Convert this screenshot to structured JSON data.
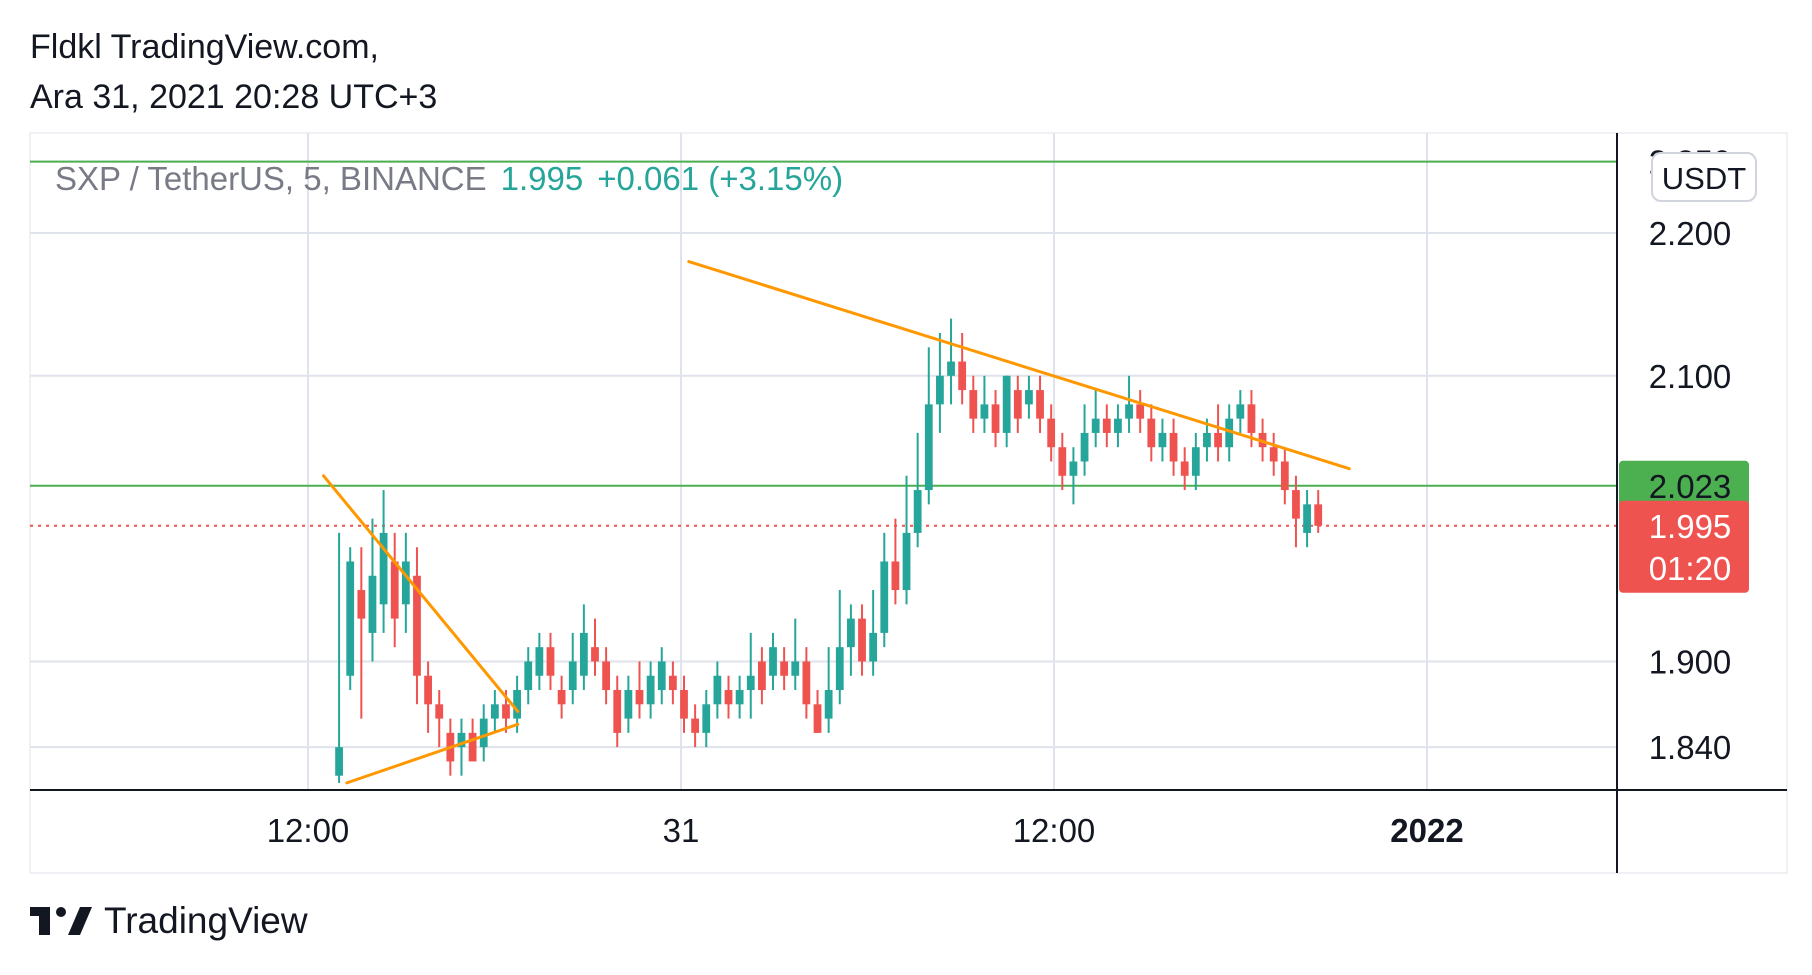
{
  "header": {
    "line1": "Fldkl TradingView.com,",
    "line2": "Ara 31, 2021 20:28 UTC+3"
  },
  "legend": {
    "symbol": "SXP / TetherUS, 5, BINANCE",
    "last": "1.995",
    "change": "+0.061 (+3.15%)"
  },
  "currency": "USDT",
  "footer": {
    "brand": "TradingView",
    "logo": "tradingview-logo-icon"
  },
  "colors": {
    "up": "#26a69a",
    "down": "#ef5350",
    "trendline": "#ff9800",
    "hline": "#4caf50",
    "grid": "#e0e3eb",
    "axis": "#131722",
    "text": "#131722"
  },
  "chart_data": {
    "type": "candlestick",
    "x_tick_labels": [
      "12:00",
      "31",
      "12:00",
      "2022"
    ],
    "y_tick_labels": [
      "2.250",
      "2.200",
      "2.100",
      "1.900",
      "1.840"
    ],
    "y_range": [
      1.81,
      2.27
    ],
    "price_tags": [
      {
        "label": "2.023",
        "value": 2.023,
        "color": "#4caf50"
      },
      {
        "label": "1.995",
        "sub": "01:20",
        "value": 1.995,
        "color": "#ef5350"
      }
    ],
    "horizontal_lines": [
      {
        "value": 2.023,
        "style": "solid",
        "color": "#4caf50"
      },
      {
        "value": 2.25,
        "style": "solid",
        "color": "#4caf50"
      },
      {
        "value": 1.995,
        "style": "dotted",
        "color": "#ef5350"
      }
    ],
    "trendlines": [
      {
        "from": [
          "30 12:30",
          2.03
        ],
        "to": [
          "30 18:45",
          1.865
        ]
      },
      {
        "from": [
          "30 13:15",
          1.815
        ],
        "to": [
          "30 18:45",
          1.856
        ]
      },
      {
        "from": [
          "31 00:15",
          2.18
        ],
        "to": [
          "31 21:30",
          2.035
        ]
      }
    ],
    "candles": [
      [
        1.82,
        1.84,
        1.815,
        1.99
      ],
      [
        1.89,
        1.97,
        1.88,
        1.98
      ],
      [
        1.95,
        1.93,
        1.86,
        1.98
      ],
      [
        1.92,
        1.96,
        1.9,
        2.0
      ],
      [
        1.94,
        1.99,
        1.92,
        2.02
      ],
      [
        1.97,
        1.93,
        1.91,
        1.99
      ],
      [
        1.94,
        1.97,
        1.92,
        1.99
      ],
      [
        1.96,
        1.89,
        1.87,
        1.98
      ],
      [
        1.89,
        1.87,
        1.85,
        1.9
      ],
      [
        1.87,
        1.86,
        1.84,
        1.88
      ],
      [
        1.85,
        1.83,
        1.82,
        1.86
      ],
      [
        1.84,
        1.85,
        1.82,
        1.86
      ],
      [
        1.85,
        1.83,
        1.83,
        1.86
      ],
      [
        1.84,
        1.86,
        1.83,
        1.87
      ],
      [
        1.86,
        1.87,
        1.85,
        1.88
      ],
      [
        1.87,
        1.86,
        1.85,
        1.88
      ],
      [
        1.86,
        1.88,
        1.85,
        1.89
      ],
      [
        1.88,
        1.9,
        1.87,
        1.91
      ],
      [
        1.89,
        1.91,
        1.88,
        1.92
      ],
      [
        1.91,
        1.89,
        1.88,
        1.92
      ],
      [
        1.88,
        1.87,
        1.86,
        1.89
      ],
      [
        1.88,
        1.9,
        1.87,
        1.92
      ],
      [
        1.89,
        1.92,
        1.88,
        1.94
      ],
      [
        1.91,
        1.9,
        1.89,
        1.93
      ],
      [
        1.9,
        1.88,
        1.87,
        1.91
      ],
      [
        1.88,
        1.85,
        1.84,
        1.89
      ],
      [
        1.86,
        1.88,
        1.85,
        1.89
      ],
      [
        1.88,
        1.87,
        1.86,
        1.9
      ],
      [
        1.87,
        1.89,
        1.86,
        1.9
      ],
      [
        1.88,
        1.9,
        1.87,
        1.91
      ],
      [
        1.89,
        1.88,
        1.87,
        1.9
      ],
      [
        1.88,
        1.86,
        1.85,
        1.89
      ],
      [
        1.86,
        1.85,
        1.84,
        1.87
      ],
      [
        1.85,
        1.87,
        1.84,
        1.88
      ],
      [
        1.87,
        1.89,
        1.86,
        1.9
      ],
      [
        1.88,
        1.87,
        1.86,
        1.89
      ],
      [
        1.87,
        1.88,
        1.86,
        1.89
      ],
      [
        1.88,
        1.89,
        1.86,
        1.92
      ],
      [
        1.9,
        1.88,
        1.87,
        1.91
      ],
      [
        1.89,
        1.91,
        1.88,
        1.92
      ],
      [
        1.9,
        1.89,
        1.88,
        1.91
      ],
      [
        1.89,
        1.9,
        1.88,
        1.93
      ],
      [
        1.9,
        1.87,
        1.86,
        1.91
      ],
      [
        1.87,
        1.85,
        1.85,
        1.88
      ],
      [
        1.86,
        1.88,
        1.85,
        1.91
      ],
      [
        1.88,
        1.91,
        1.87,
        1.95
      ],
      [
        1.91,
        1.93,
        1.89,
        1.94
      ],
      [
        1.93,
        1.9,
        1.89,
        1.94
      ],
      [
        1.9,
        1.92,
        1.89,
        1.95
      ],
      [
        1.92,
        1.97,
        1.91,
        1.99
      ],
      [
        1.97,
        1.95,
        1.94,
        2.0
      ],
      [
        1.95,
        1.99,
        1.94,
        2.03
      ],
      [
        1.99,
        2.02,
        1.98,
        2.06
      ],
      [
        2.02,
        2.08,
        2.01,
        2.12
      ],
      [
        2.08,
        2.1,
        2.06,
        2.13
      ],
      [
        2.1,
        2.11,
        2.08,
        2.14
      ],
      [
        2.11,
        2.09,
        2.08,
        2.13
      ],
      [
        2.09,
        2.07,
        2.06,
        2.1
      ],
      [
        2.07,
        2.08,
        2.06,
        2.1
      ],
      [
        2.08,
        2.06,
        2.05,
        2.09
      ],
      [
        2.06,
        2.1,
        2.05,
        2.1
      ],
      [
        2.09,
        2.07,
        2.06,
        2.1
      ],
      [
        2.08,
        2.09,
        2.07,
        2.1
      ],
      [
        2.09,
        2.07,
        2.06,
        2.1
      ],
      [
        2.07,
        2.05,
        2.04,
        2.08
      ],
      [
        2.05,
        2.03,
        2.02,
        2.06
      ],
      [
        2.03,
        2.04,
        2.01,
        2.05
      ],
      [
        2.04,
        2.06,
        2.03,
        2.08
      ],
      [
        2.06,
        2.07,
        2.05,
        2.09
      ],
      [
        2.07,
        2.06,
        2.05,
        2.08
      ],
      [
        2.06,
        2.07,
        2.05,
        2.08
      ],
      [
        2.07,
        2.08,
        2.06,
        2.1
      ],
      [
        2.08,
        2.07,
        2.06,
        2.09
      ],
      [
        2.07,
        2.05,
        2.04,
        2.08
      ],
      [
        2.05,
        2.06,
        2.04,
        2.07
      ],
      [
        2.06,
        2.04,
        2.03,
        2.07
      ],
      [
        2.04,
        2.03,
        2.02,
        2.05
      ],
      [
        2.03,
        2.05,
        2.02,
        2.06
      ],
      [
        2.05,
        2.06,
        2.04,
        2.07
      ],
      [
        2.06,
        2.05,
        2.04,
        2.08
      ],
      [
        2.05,
        2.07,
        2.04,
        2.08
      ],
      [
        2.07,
        2.08,
        2.06,
        2.09
      ],
      [
        2.08,
        2.06,
        2.05,
        2.09
      ],
      [
        2.06,
        2.05,
        2.04,
        2.07
      ],
      [
        2.05,
        2.04,
        2.03,
        2.06
      ],
      [
        2.04,
        2.02,
        2.01,
        2.05
      ],
      [
        2.02,
        2.0,
        1.98,
        2.03
      ],
      [
        1.99,
        2.01,
        1.98,
        2.02
      ],
      [
        2.01,
        1.995,
        1.99,
        2.02
      ]
    ]
  }
}
